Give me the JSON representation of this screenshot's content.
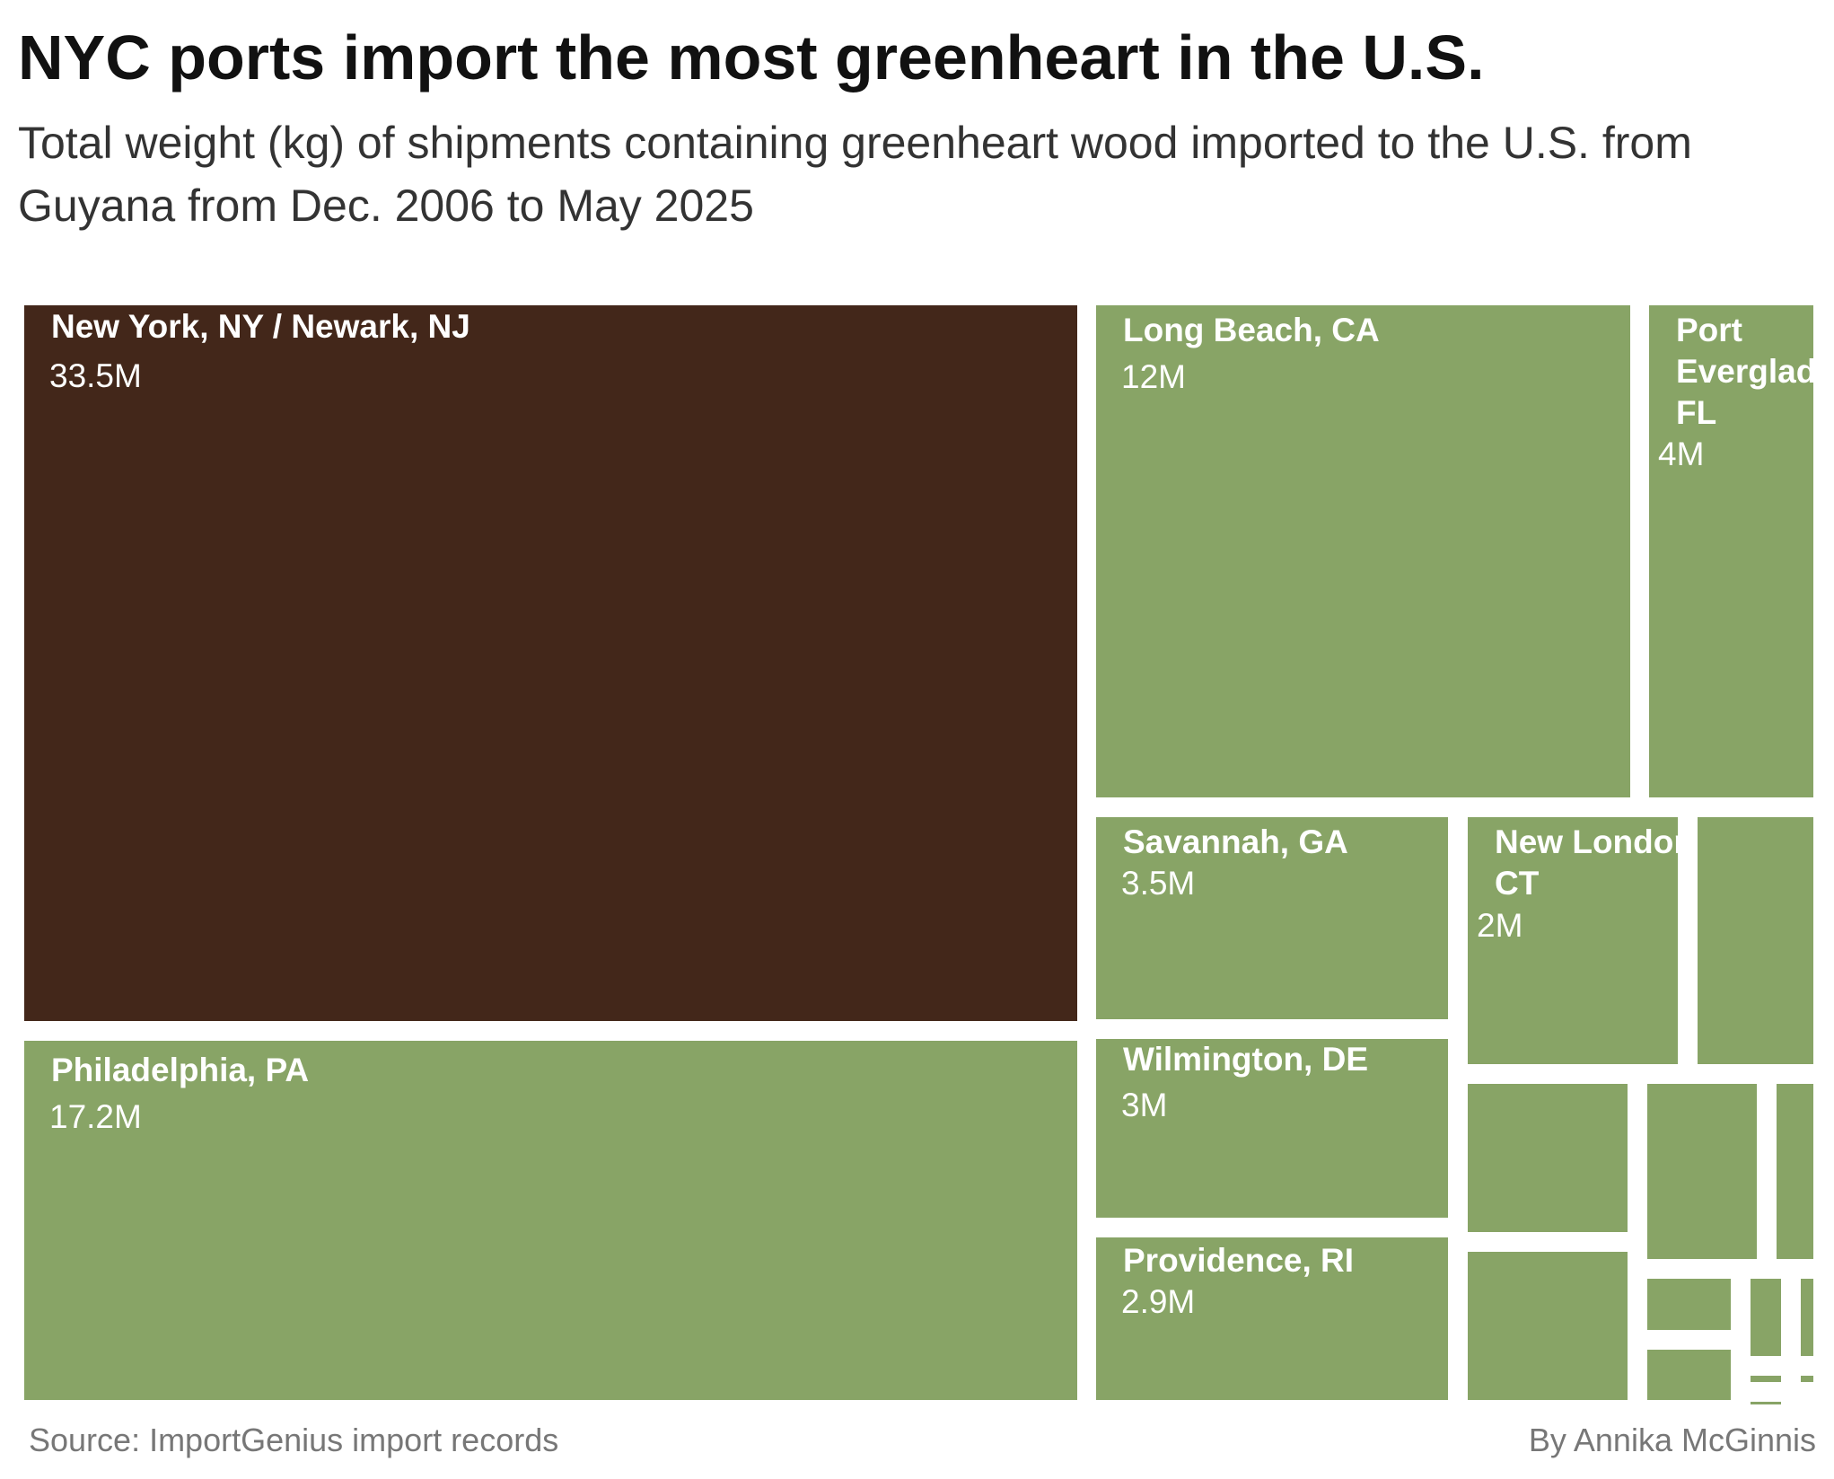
{
  "title": "NYC ports import the most greenheart in the U.S.",
  "subtitle": "Total weight (kg) of shipments containing greenheart wood imported to the U.S. from Guyana from Dec. 2006 to May 2025",
  "source": "Source: ImportGenius import records",
  "byline": "By Annika McGinnis",
  "colors": {
    "highlight": "#43271a",
    "default": "#88a466",
    "background": "#ffffff",
    "text": "#ffffff"
  },
  "chart_data": {
    "type": "treemap",
    "unit": "kg",
    "tiles": [
      {
        "name": "New York, NY / Newark, NJ",
        "value_label": "33.5M",
        "value": 33500000,
        "highlight": true
      },
      {
        "name": "Philadelphia, PA",
        "value_label": "17.2M",
        "value": 17200000
      },
      {
        "name": "Long Beach, CA",
        "value_label": "12M",
        "value": 12000000
      },
      {
        "name": "Port Everglades, FL",
        "value_label": "4M",
        "value": 4000000
      },
      {
        "name": "Savannah, GA",
        "value_label": "3.5M",
        "value": 3500000
      },
      {
        "name": "Wilmington, DE",
        "value_label": "3M",
        "value": 3000000
      },
      {
        "name": "Providence, RI",
        "value_label": "2.9M",
        "value": 2900000
      },
      {
        "name": "New London, CT",
        "value_label": "2M",
        "value": 2000000
      },
      {
        "name": "",
        "value_label": ""
      },
      {
        "name": "",
        "value_label": ""
      },
      {
        "name": "",
        "value_label": ""
      },
      {
        "name": "",
        "value_label": ""
      },
      {
        "name": "",
        "value_label": ""
      },
      {
        "name": "",
        "value_label": ""
      },
      {
        "name": "",
        "value_label": ""
      },
      {
        "name": "",
        "value_label": ""
      },
      {
        "name": "",
        "value_label": ""
      },
      {
        "name": "",
        "value_label": ""
      },
      {
        "name": "",
        "value_label": ""
      },
      {
        "name": "",
        "value_label": ""
      }
    ]
  }
}
